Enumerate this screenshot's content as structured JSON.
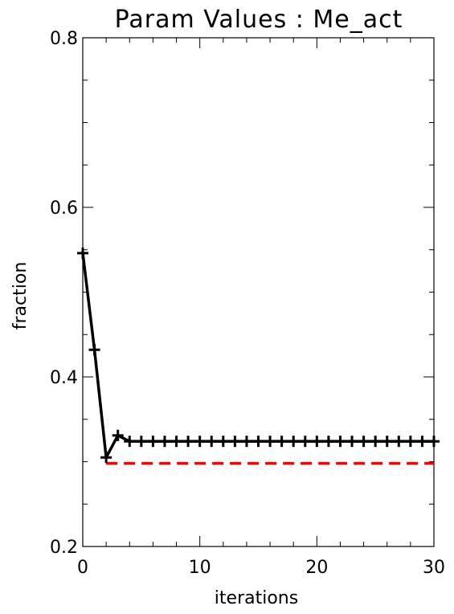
{
  "chart_data": {
    "type": "line",
    "title": "Param Values : Me_act",
    "xlabel": "iterations",
    "ylabel": "fraction",
    "xlim": [
      0,
      30
    ],
    "ylim": [
      0.2,
      0.8
    ],
    "x_ticks": [
      0,
      10,
      20,
      30
    ],
    "x_tick_labels": [
      "0",
      "10",
      "20",
      "30"
    ],
    "y_ticks": [
      0.2,
      0.4,
      0.6,
      0.8
    ],
    "y_tick_labels": [
      "0.2",
      "0.4",
      "0.6",
      "0.8"
    ],
    "x_minor_step": 2,
    "y_minor_step": 0.05,
    "grid": false,
    "series": [
      {
        "x": [
          0,
          1,
          2,
          3,
          4,
          5,
          6,
          7,
          8,
          9,
          10,
          11,
          12,
          13,
          14,
          15,
          16,
          17,
          18,
          19,
          20,
          21,
          22,
          23,
          24,
          25,
          26,
          27,
          28,
          29,
          30
        ],
        "values": [
          0.546,
          0.432,
          0.305,
          0.331,
          0.324,
          0.324,
          0.324,
          0.324,
          0.324,
          0.324,
          0.324,
          0.324,
          0.324,
          0.324,
          0.324,
          0.324,
          0.324,
          0.324,
          0.324,
          0.324,
          0.324,
          0.324,
          0.324,
          0.324,
          0.324,
          0.324,
          0.324,
          0.324,
          0.324,
          0.324,
          0.324
        ],
        "color": "#000000",
        "marker": "plus",
        "line_style": "solid"
      }
    ],
    "reference_lines": [
      {
        "y": 0.298,
        "x_start": 2,
        "x_end": 30,
        "color": "#ff0000",
        "line_style": "dashed"
      }
    ]
  }
}
